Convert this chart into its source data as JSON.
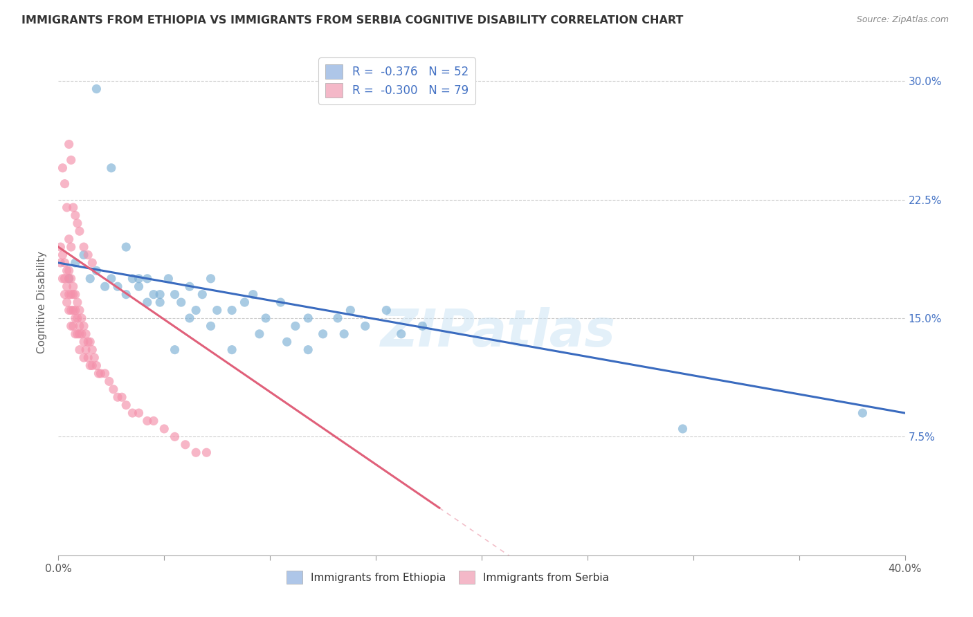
{
  "title": "IMMIGRANTS FROM ETHIOPIA VS IMMIGRANTS FROM SERBIA COGNITIVE DISABILITY CORRELATION CHART",
  "source": "Source: ZipAtlas.com",
  "ylabel": "Cognitive Disability",
  "right_yticks": [
    "7.5%",
    "15.0%",
    "22.5%",
    "30.0%"
  ],
  "right_ytick_vals": [
    0.075,
    0.15,
    0.225,
    0.3
  ],
  "legend_ethiopia": {
    "R": "-0.376",
    "N": "52",
    "color": "#aec6e8"
  },
  "legend_serbia": {
    "R": "-0.300",
    "N": "79",
    "color": "#f4b8c8"
  },
  "ethiopia_color": "#7bafd4",
  "serbia_color": "#f490aa",
  "ethiopia_line_color": "#3a6bbf",
  "serbia_line_color": "#e0607a",
  "watermark": "ZIPatlas",
  "ethiopia_scatter_x": [
    0.005,
    0.008,
    0.012,
    0.015,
    0.018,
    0.022,
    0.025,
    0.028,
    0.032,
    0.035,
    0.038,
    0.042,
    0.045,
    0.048,
    0.052,
    0.055,
    0.058,
    0.062,
    0.065,
    0.068,
    0.072,
    0.075,
    0.082,
    0.088,
    0.092,
    0.098,
    0.105,
    0.112,
    0.118,
    0.125,
    0.132,
    0.138,
    0.145,
    0.155,
    0.162,
    0.172,
    0.018,
    0.025,
    0.032,
    0.038,
    0.042,
    0.048,
    0.055,
    0.062,
    0.072,
    0.082,
    0.095,
    0.108,
    0.118,
    0.135,
    0.295,
    0.38
  ],
  "ethiopia_scatter_y": [
    0.175,
    0.185,
    0.19,
    0.175,
    0.18,
    0.17,
    0.175,
    0.17,
    0.165,
    0.175,
    0.17,
    0.16,
    0.165,
    0.16,
    0.175,
    0.165,
    0.16,
    0.17,
    0.155,
    0.165,
    0.175,
    0.155,
    0.155,
    0.16,
    0.165,
    0.15,
    0.16,
    0.145,
    0.15,
    0.14,
    0.15,
    0.155,
    0.145,
    0.155,
    0.14,
    0.145,
    0.295,
    0.245,
    0.195,
    0.175,
    0.175,
    0.165,
    0.13,
    0.15,
    0.145,
    0.13,
    0.14,
    0.135,
    0.13,
    0.14,
    0.08,
    0.09
  ],
  "serbia_scatter_x": [
    0.001,
    0.001,
    0.002,
    0.002,
    0.003,
    0.003,
    0.003,
    0.004,
    0.004,
    0.004,
    0.005,
    0.005,
    0.005,
    0.005,
    0.006,
    0.006,
    0.006,
    0.006,
    0.007,
    0.007,
    0.007,
    0.007,
    0.008,
    0.008,
    0.008,
    0.008,
    0.009,
    0.009,
    0.009,
    0.01,
    0.01,
    0.01,
    0.01,
    0.011,
    0.011,
    0.012,
    0.012,
    0.012,
    0.013,
    0.013,
    0.014,
    0.014,
    0.015,
    0.015,
    0.016,
    0.016,
    0.017,
    0.018,
    0.019,
    0.02,
    0.022,
    0.024,
    0.026,
    0.028,
    0.03,
    0.032,
    0.035,
    0.038,
    0.042,
    0.045,
    0.05,
    0.055,
    0.06,
    0.065,
    0.07,
    0.005,
    0.006,
    0.007,
    0.008,
    0.009,
    0.01,
    0.012,
    0.014,
    0.016,
    0.002,
    0.003,
    0.004,
    0.005,
    0.006
  ],
  "serbia_scatter_y": [
    0.195,
    0.185,
    0.19,
    0.175,
    0.185,
    0.175,
    0.165,
    0.18,
    0.17,
    0.16,
    0.18,
    0.175,
    0.165,
    0.155,
    0.175,
    0.165,
    0.155,
    0.145,
    0.17,
    0.165,
    0.155,
    0.145,
    0.165,
    0.155,
    0.15,
    0.14,
    0.16,
    0.15,
    0.14,
    0.155,
    0.145,
    0.14,
    0.13,
    0.15,
    0.14,
    0.145,
    0.135,
    0.125,
    0.14,
    0.13,
    0.135,
    0.125,
    0.135,
    0.12,
    0.13,
    0.12,
    0.125,
    0.12,
    0.115,
    0.115,
    0.115,
    0.11,
    0.105,
    0.1,
    0.1,
    0.095,
    0.09,
    0.09,
    0.085,
    0.085,
    0.08,
    0.075,
    0.07,
    0.065,
    0.065,
    0.26,
    0.25,
    0.22,
    0.215,
    0.21,
    0.205,
    0.195,
    0.19,
    0.185,
    0.245,
    0.235,
    0.22,
    0.2,
    0.195
  ],
  "xlim": [
    0.0,
    0.4
  ],
  "ylim": [
    0.0,
    0.32
  ],
  "grid_color": "#cccccc",
  "background_color": "#ffffff",
  "serbia_line_x": [
    0.0,
    0.18
  ],
  "serbia_line_y_start": 0.195,
  "serbia_line_y_end": 0.03,
  "ethiopia_line_x": [
    0.0,
    0.4
  ],
  "ethiopia_line_y_start": 0.185,
  "ethiopia_line_y_end": 0.09
}
